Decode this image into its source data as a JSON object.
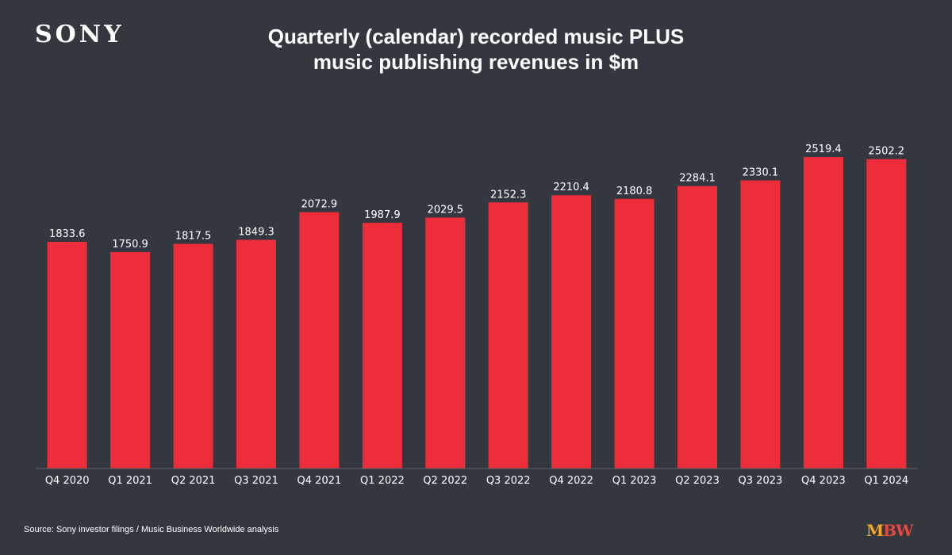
{
  "brand": {
    "logo_text": "SONY",
    "mbw_m": "M",
    "mbw_bw": "BW"
  },
  "title_line1": "Quarterly (calendar) recorded music PLUS",
  "title_line2": "music publishing revenues in $m",
  "source": "Source: Sony investor filings / Music Business Worldwide analysis",
  "colors": {
    "background": "#333840",
    "bar": "#ee2d3a",
    "text": "#ffffff",
    "axis": "#5b6068"
  },
  "chart_data": {
    "type": "bar",
    "categories": [
      "Q4 2020",
      "Q1 2021",
      "Q2 2021",
      "Q3 2021",
      "Q4 2021",
      "Q1 2022",
      "Q2 2022",
      "Q3 2022",
      "Q4 2022",
      "Q1 2023",
      "Q2 2023",
      "Q3 2023",
      "Q4 2023",
      "Q1 2024"
    ],
    "values": [
      1833.6,
      1750.9,
      1817.5,
      1849.3,
      2072.9,
      1987.9,
      2029.5,
      2152.3,
      2210.4,
      2180.8,
      2284.1,
      2330.1,
      2519.4,
      2502.2
    ],
    "value_labels": [
      "1833.6",
      "1750.9",
      "1817.5",
      "1849.3",
      "2072.9",
      "1987.9",
      "2029.5",
      "2152.3",
      "2210.4",
      "2180.8",
      "2284.1",
      "2330.1",
      "2519.4",
      "2502.2"
    ],
    "title": "Quarterly (calendar) recorded music PLUS music publishing revenues in $m",
    "ylim": [
      0,
      2700
    ],
    "grid": false,
    "data_labels": true
  }
}
